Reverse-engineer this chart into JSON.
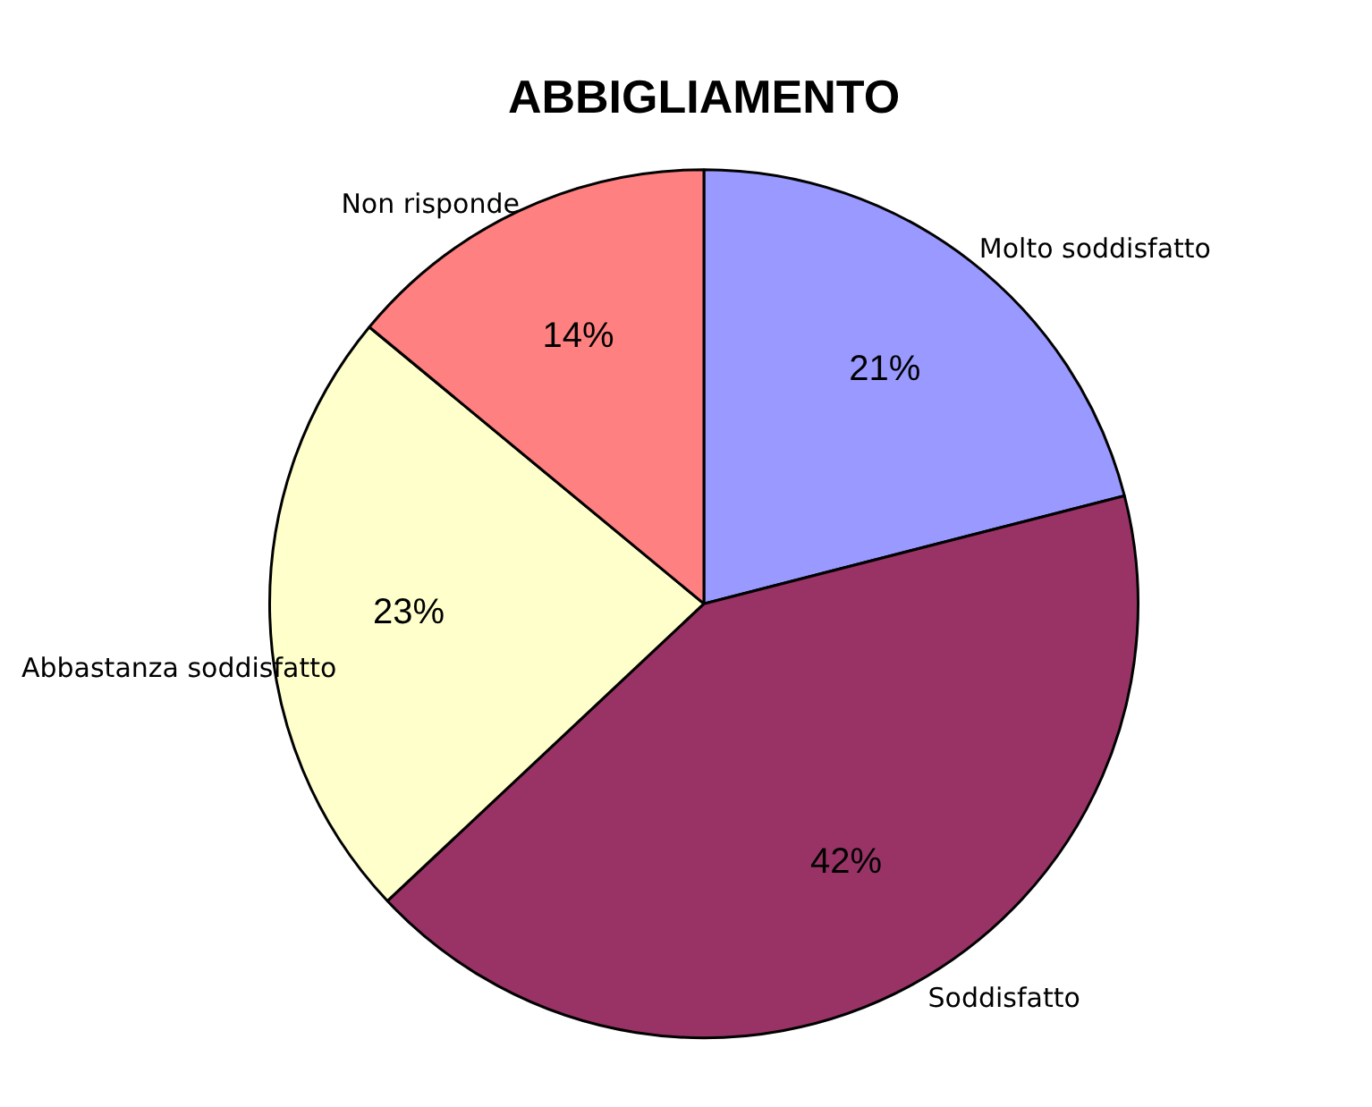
{
  "chart_data": {
    "type": "pie",
    "title": "ABBIGLIAMENTO",
    "categories": [
      "Molto soddisfatto",
      "Soddisfatto",
      "Abbastanza soddisfatto",
      "Non risponde"
    ],
    "values": [
      21,
      42,
      23,
      14
    ],
    "colors": [
      "#9999ff",
      "#993366",
      "#ffffcc",
      "#ff8080"
    ],
    "value_labels": [
      "21%",
      "42%",
      "23%",
      "14%"
    ],
    "legend": false
  }
}
